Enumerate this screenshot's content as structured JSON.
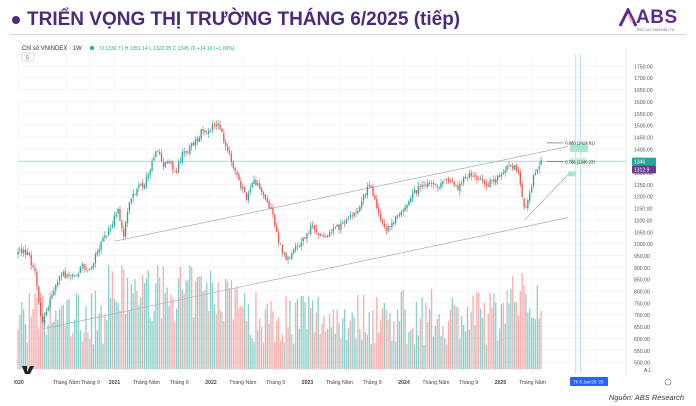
{
  "slide": {
    "title": "TRIỂN VỌNG THỊ TRƯỜNG THÁNG 6/2025 (tiếp)",
    "source": "Nguồn: ABS Research"
  },
  "logo": {
    "text": "ABS",
    "tagline": "TRỢ LỰC NHÀ ĐẦU TƯ"
  },
  "colors": {
    "up": "#26a69a",
    "down": "#ef5350",
    "vol_up": "#80cbc4",
    "vol_down": "#f4a6a6",
    "title": "#4b2a7f",
    "current_price_box": "#6c3b8f",
    "trend": "#9e9e9e"
  },
  "chart_data": {
    "type": "candlestick",
    "symbol": "Chỉ số VNINDEX · 1W",
    "ohlc_legend": {
      "O": "O 1330.71",
      "H": "H 1351.14",
      "L": "L 1322.95",
      "C": "C 1345.76",
      "change": "+14.16 (+1.06%)"
    },
    "indicator_badge": "5",
    "ylim": [
      450,
      1800
    ],
    "y_ticks": [
      1750,
      1700,
      1650,
      1600,
      1550,
      1500,
      1450,
      1400,
      1350,
      1300,
      1250,
      1200,
      1150,
      1100,
      1050,
      1000,
      950,
      900,
      850,
      800,
      750,
      700,
      650,
      600,
      550,
      500
    ],
    "x_ticks": [
      {
        "t": 0,
        "label": "2020"
      },
      {
        "t": 0.5,
        "label": "Tháng Năm"
      },
      {
        "t": 0.75,
        "label": "Tháng 9"
      },
      {
        "t": 1,
        "label": "2021"
      },
      {
        "t": 1.33,
        "label": "Tháng Năm"
      },
      {
        "t": 1.67,
        "label": "Tháng 9"
      },
      {
        "t": 2,
        "label": "2022"
      },
      {
        "t": 2.33,
        "label": "Tháng Năm"
      },
      {
        "t": 2.67,
        "label": "Tháng 9"
      },
      {
        "t": 3,
        "label": "2023"
      },
      {
        "t": 3.33,
        "label": "Tháng Năm"
      },
      {
        "t": 3.67,
        "label": "Tháng 9"
      },
      {
        "t": 4,
        "label": "2024"
      },
      {
        "t": 4.33,
        "label": "Tháng Năm"
      },
      {
        "t": 4.67,
        "label": "Tháng 9"
      },
      {
        "t": 5,
        "label": "2025"
      },
      {
        "t": 5.33,
        "label": "Tháng Năm"
      },
      {
        "t": 6,
        "label": "2026"
      }
    ],
    "x_range_years": [
      2020.0,
      2026.3
    ],
    "price_path": [
      [
        0.0,
        960
      ],
      [
        0.06,
        975
      ],
      [
        0.12,
        940
      ],
      [
        0.18,
        870
      ],
      [
        0.22,
        720
      ],
      [
        0.25,
        660
      ],
      [
        0.3,
        720
      ],
      [
        0.36,
        780
      ],
      [
        0.42,
        860
      ],
      [
        0.5,
        870
      ],
      [
        0.58,
        860
      ],
      [
        0.66,
        900
      ],
      [
        0.75,
        890
      ],
      [
        0.83,
        980
      ],
      [
        0.92,
        1040
      ],
      [
        1.0,
        1110
      ],
      [
        1.04,
        1150
      ],
      [
        1.09,
        1020
      ],
      [
        1.15,
        1160
      ],
      [
        1.22,
        1230
      ],
      [
        1.3,
        1250
      ],
      [
        1.38,
        1330
      ],
      [
        1.44,
        1410
      ],
      [
        1.5,
        1320
      ],
      [
        1.56,
        1360
      ],
      [
        1.62,
        1290
      ],
      [
        1.7,
        1370
      ],
      [
        1.78,
        1400
      ],
      [
        1.85,
        1440
      ],
      [
        1.92,
        1490
      ],
      [
        1.98,
        1470
      ],
      [
        2.02,
        1520
      ],
      [
        2.06,
        1500
      ],
      [
        2.1,
        1480
      ],
      [
        2.14,
        1420
      ],
      [
        2.2,
        1360
      ],
      [
        2.26,
        1290
      ],
      [
        2.32,
        1230
      ],
      [
        2.38,
        1190
      ],
      [
        2.44,
        1260
      ],
      [
        2.5,
        1250
      ],
      [
        2.55,
        1190
      ],
      [
        2.6,
        1160
      ],
      [
        2.64,
        1130
      ],
      [
        2.68,
        1040
      ],
      [
        2.74,
        960
      ],
      [
        2.8,
        930
      ],
      [
        2.86,
        970
      ],
      [
        2.93,
        1000
      ],
      [
        3.0,
        1050
      ],
      [
        3.05,
        1080
      ],
      [
        3.12,
        1040
      ],
      [
        3.2,
        1030
      ],
      [
        3.28,
        1060
      ],
      [
        3.36,
        1080
      ],
      [
        3.44,
        1110
      ],
      [
        3.52,
        1150
      ],
      [
        3.6,
        1220
      ],
      [
        3.66,
        1240
      ],
      [
        3.72,
        1150
      ],
      [
        3.78,
        1080
      ],
      [
        3.84,
        1060
      ],
      [
        3.9,
        1100
      ],
      [
        3.96,
        1130
      ],
      [
        4.04,
        1170
      ],
      [
        4.12,
        1220
      ],
      [
        4.2,
        1260
      ],
      [
        4.28,
        1250
      ],
      [
        4.34,
        1230
      ],
      [
        4.4,
        1270
      ],
      [
        4.48,
        1250
      ],
      [
        4.56,
        1230
      ],
      [
        4.62,
        1270
      ],
      [
        4.68,
        1290
      ],
      [
        4.74,
        1280
      ],
      [
        4.8,
        1260
      ],
      [
        4.86,
        1250
      ],
      [
        4.92,
        1270
      ],
      [
        4.98,
        1280
      ],
      [
        5.04,
        1300
      ],
      [
        5.1,
        1330
      ],
      [
        5.15,
        1320
      ],
      [
        5.19,
        1290
      ],
      [
        5.22,
        1200
      ],
      [
        5.25,
        1130
      ],
      [
        5.29,
        1200
      ],
      [
        5.34,
        1280
      ],
      [
        5.39,
        1330
      ],
      [
        5.42,
        1346
      ]
    ],
    "volume_ticks": [],
    "annotations": {
      "fib_labels": [
        {
          "text": "0.886 (1424.81)",
          "y": 1424.81
        },
        {
          "text": "0.786 (1346.23)",
          "y": 1346.23
        }
      ],
      "price_tags": [
        {
          "text": "1346",
          "y": 1346,
          "color": "#26a69a"
        },
        {
          "text": "1312.9",
          "y": 1312.9,
          "color": "#6c3b8f"
        }
      ],
      "date_badge": "Th 5 Jun'25  '25",
      "axis_corner": "A   L"
    }
  }
}
